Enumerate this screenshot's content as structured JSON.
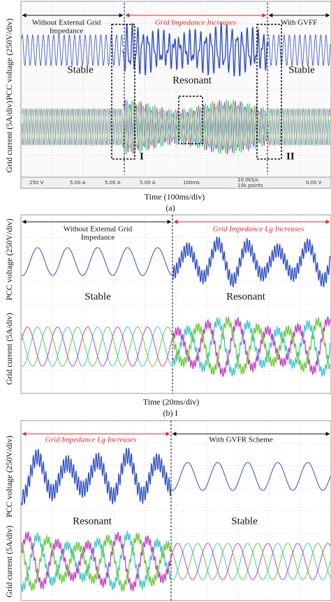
{
  "panel_a": {
    "left_label": [
      "Without External Grid",
      "Impedance"
    ],
    "middle_label": "Grid Impedance Increases",
    "right_label": "With GVFF",
    "voltage_axis": "PCC voltage (250V/div)",
    "current_axis": "Grid current (5A/div)",
    "states": [
      "Stable",
      "Resonant",
      "Stable"
    ],
    "markers": [
      "I",
      "II"
    ],
    "status": [
      "250 V",
      "5.00 A",
      "5.00 A",
      "5.00 A",
      "100ms",
      "10.0kS/s",
      "10k points",
      "0.00 V"
    ],
    "time_axis": "Time (100ms/div)",
    "caption": "(a)"
  },
  "panel_b": {
    "left_label": [
      "Without External Grid",
      "Impedance"
    ],
    "right_label": "Grid Impedance Lg Increases",
    "voltage_axis": "PCC voltage (250V/div)",
    "current_axis": "Grid current (5A/div)",
    "states": [
      "Stable",
      "Resonant"
    ],
    "time_axis": "Time (20ms/div)",
    "caption": "(b) I"
  },
  "panel_c": {
    "left_label": "Grid Impedance Lg Increases",
    "right_label": "With GVFR Scheme",
    "voltage_axis": "PCC voltage (250V/div)",
    "current_axis": "Grid current (5A/div)",
    "states": [
      "Resonant",
      "Stable"
    ]
  }
}
